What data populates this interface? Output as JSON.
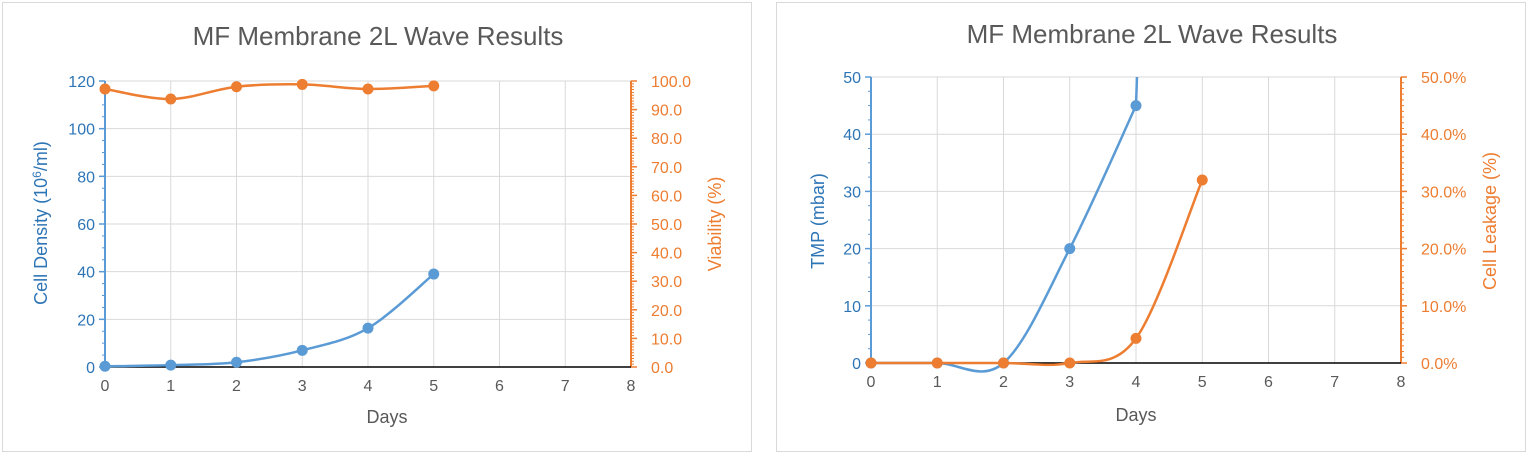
{
  "colors": {
    "blue": "#5b9bd5",
    "orange": "#ed7d31",
    "grid": "#d9d9d9",
    "text": "#595959"
  },
  "chart_data": [
    {
      "type": "line",
      "title": "MF Membrane 2L Wave Results",
      "xlabel": "Days",
      "ylabel": "Cell Density (10",
      "ylabel_sup": "6",
      "ylabel_tail": "/ml)",
      "y2label": "Viability (%)",
      "xlim": [
        0,
        8
      ],
      "ylim": [
        0,
        120
      ],
      "y2lim": [
        0,
        100
      ],
      "x_ticks": [
        "0",
        "1",
        "2",
        "3",
        "4",
        "5",
        "6",
        "7",
        "8"
      ],
      "y_ticks": [
        "0",
        "20",
        "40",
        "60",
        "80",
        "100",
        "120"
      ],
      "y2_ticks": [
        "0.0",
        "10.0",
        "20.0",
        "30.0",
        "40.0",
        "50.0",
        "60.0",
        "70.0",
        "80.0",
        "90.0",
        "100.0"
      ],
      "grid": true,
      "legend": "none",
      "series": [
        {
          "axis": "left",
          "color": "#5b9bd5",
          "x": [
            0,
            1,
            2,
            3,
            4,
            5
          ],
          "values": [
            0.3,
            0.8,
            2.0,
            7.0,
            16.3,
            39.0
          ]
        },
        {
          "axis": "right",
          "color": "#ed7d31",
          "x": [
            0,
            1,
            2,
            3,
            4,
            5
          ],
          "values": [
            97.2,
            93.7,
            98.0,
            98.8,
            97.2,
            98.3
          ]
        }
      ]
    },
    {
      "type": "line",
      "title": "MF Membrane 2L Wave Results",
      "xlabel": "Days",
      "ylabel": "TMP (mbar)",
      "y2label": "Cell Leakage (%)",
      "xlim": [
        0,
        8
      ],
      "ylim": [
        0,
        50
      ],
      "y2lim": [
        0,
        50
      ],
      "x_ticks": [
        "0",
        "1",
        "2",
        "3",
        "4",
        "5",
        "6",
        "7",
        "8"
      ],
      "y_ticks": [
        "0",
        "10",
        "20",
        "30",
        "40",
        "50"
      ],
      "y2_ticks": [
        "0.0%",
        "10.0%",
        "20.0%",
        "30.0%",
        "40.0%",
        "50.0%"
      ],
      "grid": true,
      "legend": "none",
      "series": [
        {
          "axis": "left",
          "color": "#5b9bd5",
          "x": [
            0,
            1,
            2,
            3,
            4
          ],
          "values": [
            0,
            0,
            0,
            20,
            45
          ],
          "clip_top": true
        },
        {
          "axis": "right",
          "color": "#ed7d31",
          "x": [
            0,
            1,
            2,
            3,
            4,
            5
          ],
          "values": [
            0,
            0,
            0,
            0,
            4.3,
            32
          ]
        }
      ]
    }
  ]
}
